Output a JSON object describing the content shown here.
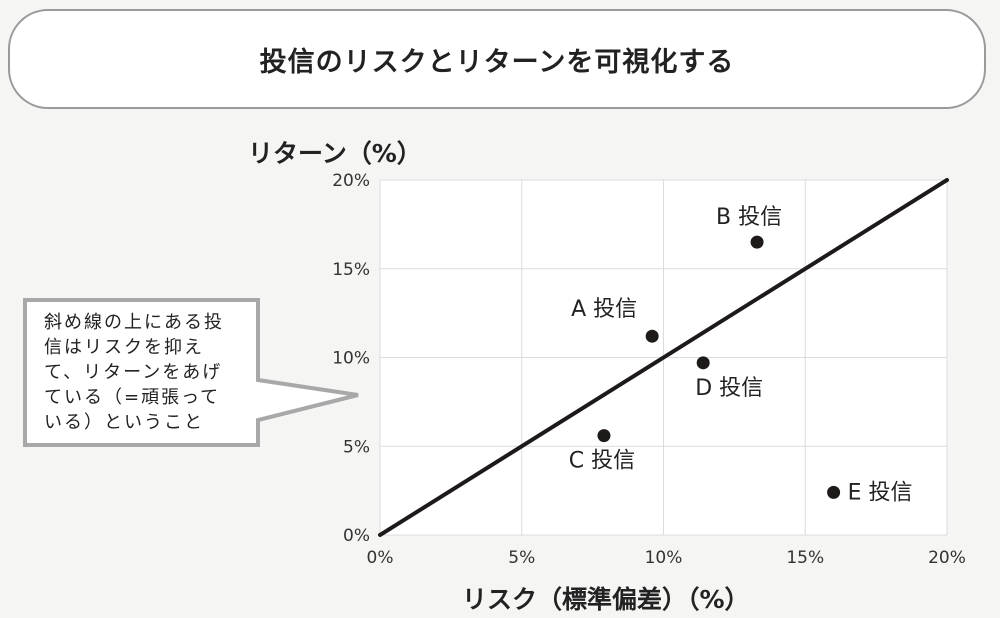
{
  "title": "投信のリスクとリターンを可視化する",
  "callout": {
    "lines": [
      "斜め線の上にある投",
      "信はリスクを抑え",
      "て、リターンをあげ",
      "ている（=頑張って",
      "いる）ということ"
    ]
  },
  "chart_data": {
    "type": "scatter",
    "xlabel": "リスク（標準偏差）（%）",
    "ylabel": "リターン（%）",
    "xlim": [
      0,
      20
    ],
    "ylim": [
      0,
      20
    ],
    "x_ticks": [
      "0%",
      "5%",
      "10%",
      "15%",
      "20%"
    ],
    "y_ticks": [
      "0%",
      "5%",
      "10%",
      "15%",
      "20%"
    ],
    "grid": true,
    "reference_line": {
      "from": [
        0,
        0
      ],
      "to": [
        20,
        20
      ]
    },
    "points": [
      {
        "label": "A 投信",
        "x": 9.6,
        "y": 11.2
      },
      {
        "label": "B 投信",
        "x": 13.3,
        "y": 16.5
      },
      {
        "label": "C 投信",
        "x": 7.9,
        "y": 5.6
      },
      {
        "label": "D 投信",
        "x": 11.4,
        "y": 9.7
      },
      {
        "label": "E 投信",
        "x": 16.0,
        "y": 2.4
      }
    ]
  }
}
